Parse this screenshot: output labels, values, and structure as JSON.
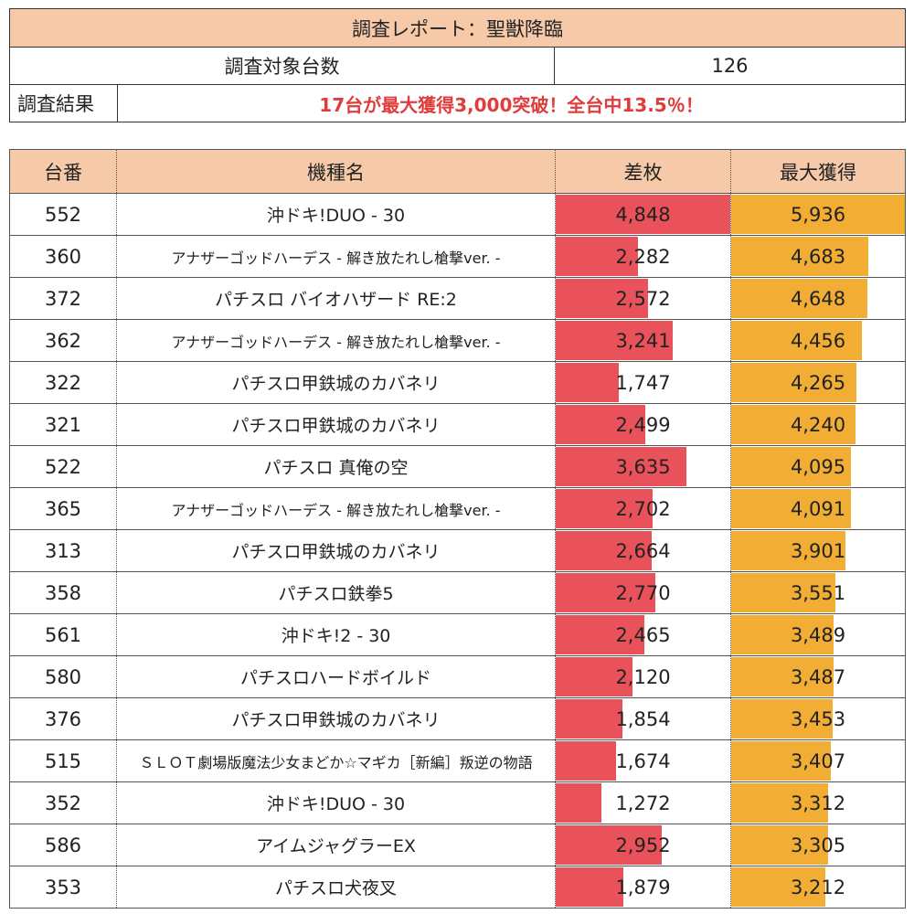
{
  "report": {
    "title": "調査レポート：聖獣降臨",
    "target_label": "調査対象台数",
    "target_value": "126",
    "result_label": "調査結果",
    "result_text": "17台が最大獲得3,000突破！全台中13.5％！"
  },
  "colors": {
    "header_bg": "#f6c9a8",
    "diff_bar": "#e9525b",
    "max_bar": "#f2ad35",
    "result_text": "#e03c3c"
  },
  "chart_data": {
    "type": "table",
    "columns": [
      "台番",
      "機種名",
      "差枚",
      "最大獲得"
    ],
    "diff_max": 4848,
    "max_max": 5936,
    "rows": [
      {
        "no": "552",
        "model": "沖ドキ!DUO - 30",
        "diff": 4848,
        "diff_label": "4,848",
        "max": 5936,
        "max_label": "5,936"
      },
      {
        "no": "360",
        "model": "アナザーゴッドハーデス - 解き放たれし槍撃ver. -",
        "diff": 2282,
        "diff_label": "2,282",
        "max": 4683,
        "max_label": "4,683"
      },
      {
        "no": "372",
        "model": "パチスロ バイオハザード RE:2",
        "diff": 2572,
        "diff_label": "2,572",
        "max": 4648,
        "max_label": "4,648"
      },
      {
        "no": "362",
        "model": "アナザーゴッドハーデス - 解き放たれし槍撃ver. -",
        "diff": 3241,
        "diff_label": "3,241",
        "max": 4456,
        "max_label": "4,456"
      },
      {
        "no": "322",
        "model": "パチスロ甲鉄城のカバネリ",
        "diff": 1747,
        "diff_label": "1,747",
        "max": 4265,
        "max_label": "4,265"
      },
      {
        "no": "321",
        "model": "パチスロ甲鉄城のカバネリ",
        "diff": 2499,
        "diff_label": "2,499",
        "max": 4240,
        "max_label": "4,240"
      },
      {
        "no": "522",
        "model": "パチスロ 真俺の空",
        "diff": 3635,
        "diff_label": "3,635",
        "max": 4095,
        "max_label": "4,095"
      },
      {
        "no": "365",
        "model": "アナザーゴッドハーデス - 解き放たれし槍撃ver. -",
        "diff": 2702,
        "diff_label": "2,702",
        "max": 4091,
        "max_label": "4,091"
      },
      {
        "no": "313",
        "model": "パチスロ甲鉄城のカバネリ",
        "diff": 2664,
        "diff_label": "2,664",
        "max": 3901,
        "max_label": "3,901"
      },
      {
        "no": "358",
        "model": "パチスロ鉄拳5",
        "diff": 2770,
        "diff_label": "2,770",
        "max": 3551,
        "max_label": "3,551"
      },
      {
        "no": "561",
        "model": "沖ドキ!2 - 30",
        "diff": 2465,
        "diff_label": "2,465",
        "max": 3489,
        "max_label": "3,489"
      },
      {
        "no": "580",
        "model": "パチスロハードボイルド",
        "diff": 2120,
        "diff_label": "2,120",
        "max": 3487,
        "max_label": "3,487"
      },
      {
        "no": "376",
        "model": "パチスロ甲鉄城のカバネリ",
        "diff": 1854,
        "diff_label": "1,854",
        "max": 3453,
        "max_label": "3,453"
      },
      {
        "no": "515",
        "model": "ＳＬＯＴ劇場版魔法少女まどか☆マギカ［新編］叛逆の物語",
        "diff": 1674,
        "diff_label": "1,674",
        "max": 3407,
        "max_label": "3,407"
      },
      {
        "no": "352",
        "model": "沖ドキ!DUO - 30",
        "diff": 1272,
        "diff_label": "1,272",
        "max": 3312,
        "max_label": "3,312"
      },
      {
        "no": "586",
        "model": "アイムジャグラーEX",
        "diff": 2952,
        "diff_label": "2,952",
        "max": 3305,
        "max_label": "3,305"
      },
      {
        "no": "353",
        "model": "パチスロ犬夜叉",
        "diff": 1879,
        "diff_label": "1,879",
        "max": 3212,
        "max_label": "3,212"
      }
    ]
  }
}
